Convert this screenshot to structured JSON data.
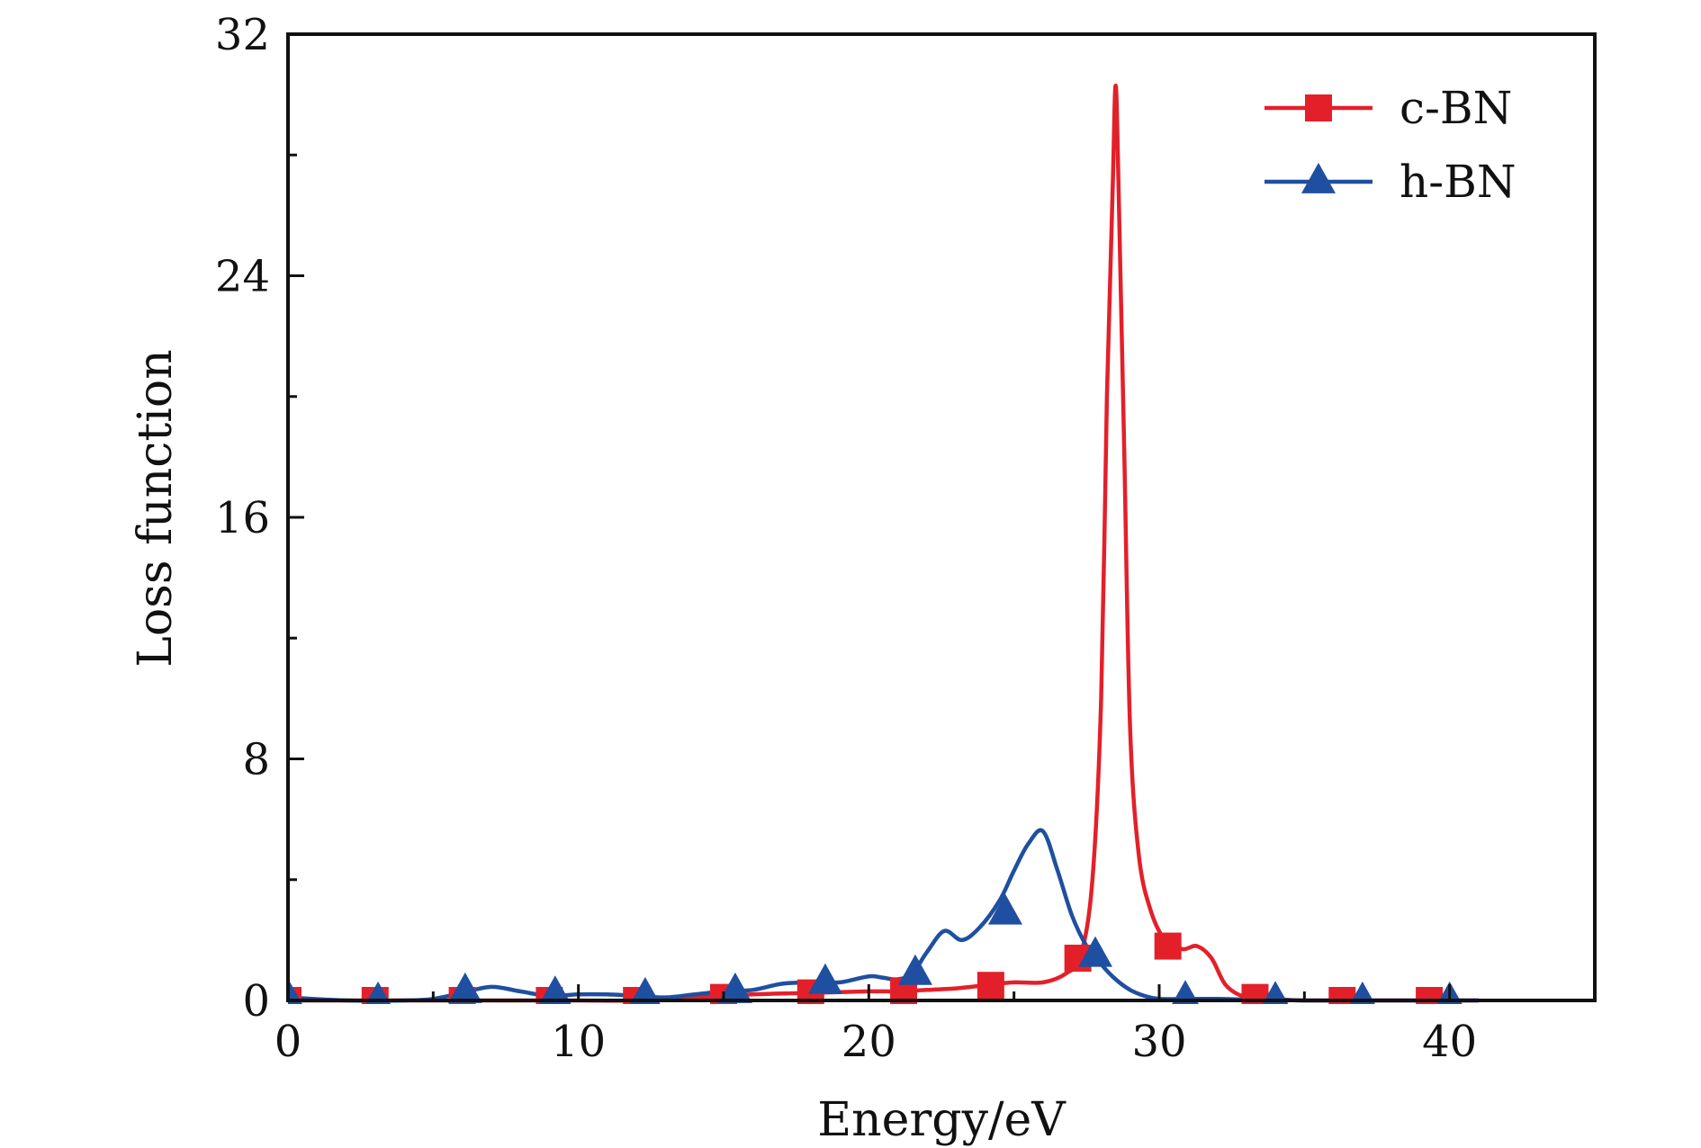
{
  "chart_data": {
    "type": "line",
    "xlabel": "Energy/eV",
    "ylabel": "Loss function",
    "xlim": [
      0,
      45
    ],
    "ylim": [
      0,
      32
    ],
    "xticks": [
      0,
      10,
      20,
      30,
      40
    ],
    "yticks": [
      0,
      8,
      16,
      24,
      32
    ],
    "xtick_labels": [
      "0",
      "10",
      "20",
      "30",
      "40"
    ],
    "ytick_labels": [
      "0",
      "8",
      "16",
      "24",
      "32"
    ],
    "legend_position": "top-right",
    "series": [
      {
        "name": "c-BN",
        "color": "#e3202a",
        "marker": "square",
        "x": [
          0,
          3,
          5,
          8,
          10,
          12,
          14,
          16,
          18,
          20,
          21,
          22,
          23,
          24,
          25,
          26,
          26.8,
          27.3,
          27.7,
          28,
          28.2,
          28.4,
          28.5,
          28.6,
          28.8,
          29,
          29.3,
          29.7,
          30.2,
          30.8,
          31.3,
          31.8,
          32.3,
          33,
          34,
          35,
          38,
          41
        ],
        "y": [
          0,
          0,
          0,
          0,
          0,
          0,
          0.1,
          0.2,
          0.25,
          0.3,
          0.3,
          0.35,
          0.4,
          0.5,
          0.6,
          0.6,
          0.9,
          1.5,
          4,
          10,
          20,
          27,
          30.3,
          27,
          18,
          9,
          4.8,
          3,
          2,
          1.7,
          1.8,
          1.4,
          0.5,
          0.1,
          0.05,
          0,
          0,
          0
        ],
        "marker_x": [
          0,
          3,
          6,
          9,
          12,
          15,
          18,
          21.2,
          24.2,
          27.2,
          30.3,
          33.3,
          36.3,
          39.3
        ],
        "marker_y": [
          0,
          0,
          0,
          0,
          0,
          0.1,
          0.25,
          0.3,
          0.5,
          1.4,
          1.8,
          0.1,
          0,
          0
        ]
      },
      {
        "name": "h-BN",
        "color": "#1f4fa0",
        "marker": "triangle",
        "x": [
          0,
          2,
          4,
          5,
          6,
          7,
          8,
          9,
          10,
          11,
          12,
          13,
          14,
          15,
          16,
          17,
          18,
          19,
          20,
          20.5,
          21,
          21.5,
          22,
          22.6,
          23.2,
          23.8,
          24.5,
          25,
          25.5,
          26,
          26.5,
          27,
          27.5,
          28,
          28.5,
          29,
          29.5,
          30,
          31,
          32,
          33,
          34,
          35,
          36,
          38,
          40,
          41
        ],
        "y": [
          0.1,
          0,
          0,
          0.05,
          0.25,
          0.45,
          0.3,
          0.15,
          0.2,
          0.2,
          0.15,
          0.1,
          0.2,
          0.3,
          0.35,
          0.55,
          0.6,
          0.6,
          0.8,
          0.75,
          0.7,
          0.9,
          1.6,
          2.3,
          2.0,
          2.4,
          3.3,
          4.3,
          5.2,
          5.6,
          4.3,
          2.8,
          1.8,
          1.2,
          0.7,
          0.35,
          0.15,
          0.05,
          0.05,
          0.05,
          0.03,
          0.02,
          0,
          0,
          0,
          0,
          0
        ],
        "marker_x": [
          0,
          3.1,
          6.1,
          9.2,
          12.3,
          15.4,
          18.5,
          21.6,
          24.7,
          27.8,
          30.9,
          34,
          37,
          40
        ],
        "marker_y": [
          0.1,
          0,
          0.3,
          0.2,
          0.15,
          0.3,
          0.6,
          0.9,
          2.9,
          1.5,
          0.05,
          0.02,
          0,
          0
        ]
      }
    ]
  }
}
